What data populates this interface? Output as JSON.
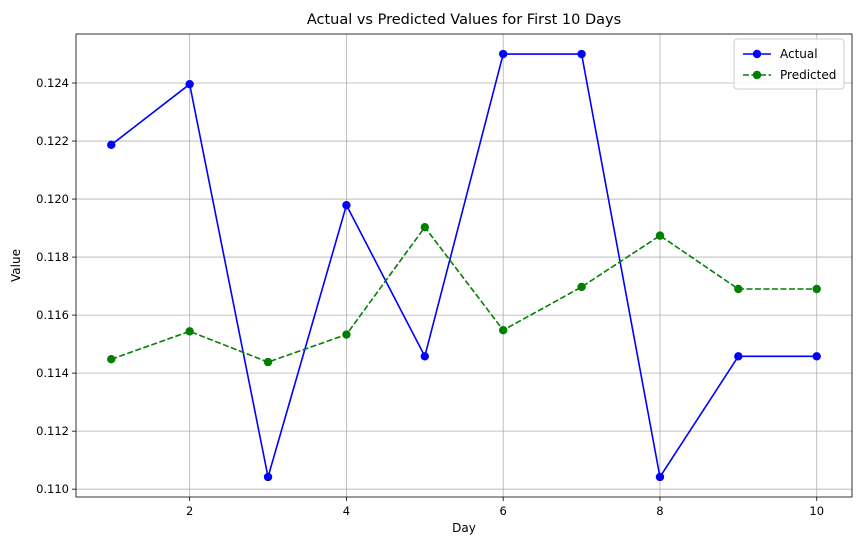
{
  "chart_data": {
    "type": "line",
    "title": "Actual vs Predicted Values for First 10 Days",
    "xlabel": "Day",
    "ylabel": "Value",
    "x": [
      1,
      2,
      3,
      4,
      5,
      6,
      7,
      8,
      9,
      10
    ],
    "xlim": [
      0.55,
      10.45
    ],
    "ylim": [
      0.10973,
      0.12569
    ],
    "xticks": [
      2,
      4,
      6,
      8,
      10
    ],
    "xtick_labels": [
      "2",
      "4",
      "6",
      "8",
      "10"
    ],
    "yticks": [
      0.11,
      0.112,
      0.114,
      0.116,
      0.118,
      0.12,
      0.122,
      0.124
    ],
    "ytick_labels": [
      "0.110",
      "0.112",
      "0.114",
      "0.116",
      "0.118",
      "0.120",
      "0.122",
      "0.124"
    ],
    "grid": true,
    "legend_position": "top-right",
    "series": [
      {
        "name": "Actual",
        "color": "#0000ff",
        "line_style": "solid",
        "marker": "circle",
        "values": [
          0.12187,
          0.12396,
          0.11042,
          0.11979,
          0.11458,
          0.125,
          0.125,
          0.11042,
          0.11458,
          0.11458
        ]
      },
      {
        "name": "Predicted",
        "color": "#008000",
        "line_style": "dashed",
        "marker": "circle",
        "values": [
          0.11448,
          0.11544,
          0.11438,
          0.11533,
          0.11903,
          0.11548,
          0.11697,
          0.11874,
          0.1169,
          0.1169
        ]
      }
    ]
  }
}
